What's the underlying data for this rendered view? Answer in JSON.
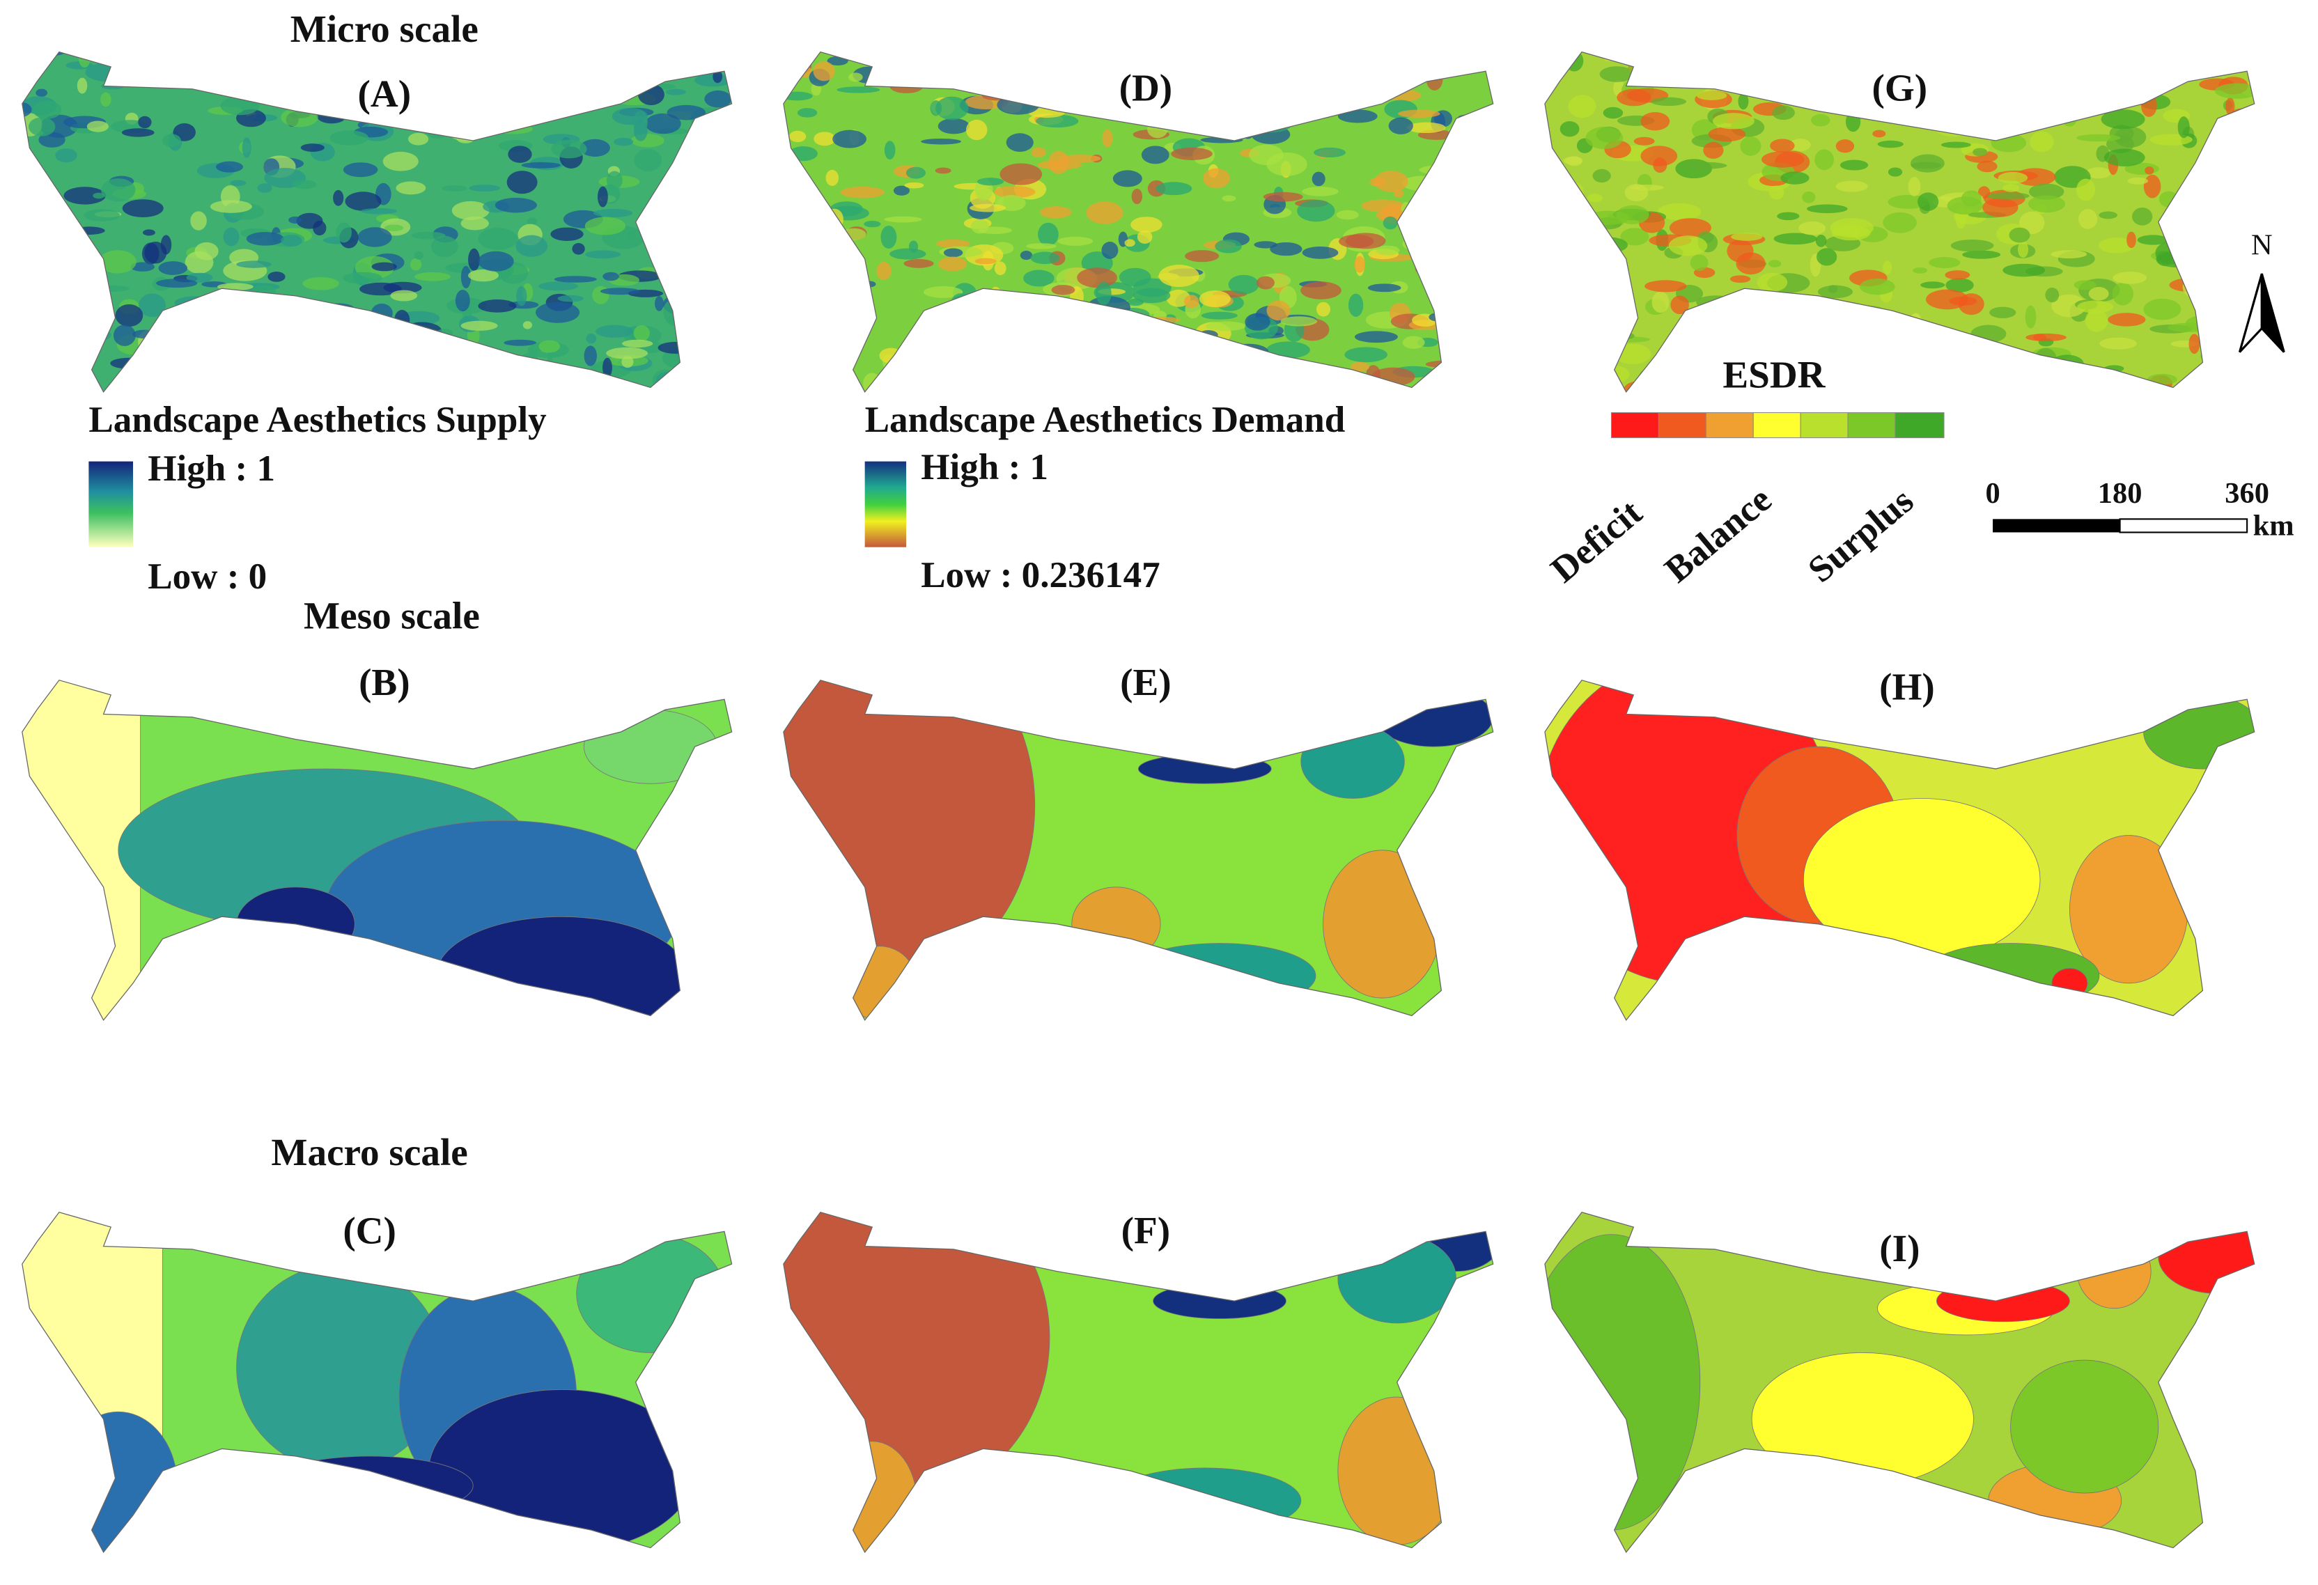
{
  "rows": [
    {
      "title": "Micro scale"
    },
    {
      "title": "Meso scale"
    },
    {
      "title": "Macro scale"
    }
  ],
  "panels": [
    {
      "label": "(A)"
    },
    {
      "label": "(D)"
    },
    {
      "label": "(G)"
    },
    {
      "label": "(B)"
    },
    {
      "label": "(E)"
    },
    {
      "label": "(H)"
    },
    {
      "label": "(C)"
    },
    {
      "label": "(F)"
    },
    {
      "label": "(I)"
    }
  ],
  "legends": {
    "supply": {
      "title": "Landscape Aesthetics Supply",
      "high": "High : 1",
      "low": "Low : 0"
    },
    "demand": {
      "title": "Landscape Aesthetics Demand",
      "high": "High : 1",
      "low": "Low : 0.236147"
    },
    "esdr": {
      "title": "ESDR",
      "classes": [
        "Deficit",
        "Balance",
        "Surplus"
      ]
    }
  },
  "scale_bar": {
    "ticks": [
      0,
      180,
      360
    ],
    "unit": "km"
  },
  "north": "N"
}
